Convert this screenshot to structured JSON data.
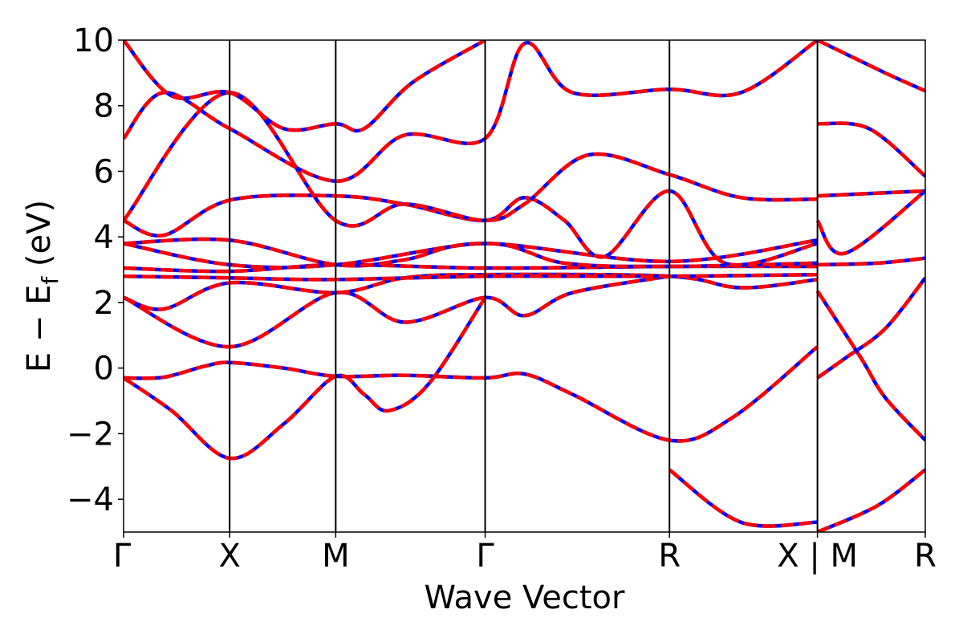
{
  "chart_data": {
    "type": "line",
    "xlabel": "Wave Vector",
    "ylabel": {
      "main": "E − E",
      "sub": "f",
      "unit": " (eV)"
    },
    "ylim": [
      -5,
      10
    ],
    "yticks": [
      -4,
      -2,
      0,
      2,
      4,
      6,
      8,
      10
    ],
    "ytick_labels": [
      "−4",
      "−2",
      "0",
      "2",
      "4",
      "6",
      "8",
      "10"
    ],
    "kpath": {
      "positions": [
        0,
        0.1323,
        0.2646,
        0.451,
        0.6809,
        0.8655,
        1.0
      ],
      "labels": [
        "Γ",
        "X",
        "M",
        "Γ",
        "R",
        "X | M",
        "R"
      ]
    },
    "bands": [
      {
        "points": [
          [
            0,
            -0.3
          ],
          [
            0.05,
            -0.28
          ],
          [
            0.1,
            0.05
          ],
          [
            0.1323,
            0.17
          ],
          [
            0.2,
            0.0
          ],
          [
            0.2646,
            -0.25
          ],
          [
            0.35,
            -0.22
          ],
          [
            0.451,
            -0.3
          ],
          [
            0.5,
            -0.18
          ],
          [
            0.56,
            -0.8
          ],
          [
            0.6809,
            -2.2
          ],
          [
            0.76,
            -1.5
          ],
          [
            0.8655,
            0.65
          ]
        ]
      },
      {
        "points": [
          [
            0,
            -0.3
          ],
          [
            0.06,
            -1.3
          ],
          [
            0.1323,
            -2.75
          ],
          [
            0.2,
            -1.7
          ],
          [
            0.2646,
            -0.25
          ],
          [
            0.3,
            -0.8
          ],
          [
            0.33,
            -1.3
          ],
          [
            0.38,
            -0.5
          ],
          [
            0.451,
            2.15
          ]
        ]
      },
      {
        "points": [
          [
            0,
            2.15
          ],
          [
            0.1323,
            0.65
          ],
          [
            0.2646,
            2.3
          ],
          [
            0.35,
            1.4
          ],
          [
            0.451,
            2.15
          ],
          [
            0.5,
            1.6
          ],
          [
            0.56,
            2.3
          ],
          [
            0.6809,
            2.8
          ]
        ]
      },
      {
        "points": [
          [
            0,
            2.15
          ],
          [
            0.05,
            1.8
          ],
          [
            0.1323,
            2.6
          ],
          [
            0.2646,
            2.3
          ],
          [
            0.35,
            2.75
          ],
          [
            0.451,
            2.85
          ],
          [
            0.6809,
            2.8
          ],
          [
            0.77,
            2.45
          ],
          [
            0.8655,
            2.7
          ]
        ]
      },
      {
        "points": [
          [
            0,
            2.8
          ],
          [
            0.1323,
            2.75
          ],
          [
            0.2646,
            2.7
          ],
          [
            0.451,
            2.8
          ],
          [
            0.6809,
            2.8
          ],
          [
            0.8655,
            2.85
          ]
        ]
      },
      {
        "points": [
          [
            0,
            3.05
          ],
          [
            0.1323,
            2.95
          ],
          [
            0.2646,
            3.15
          ],
          [
            0.451,
            3.05
          ],
          [
            0.6809,
            3.1
          ],
          [
            0.8655,
            3.1
          ]
        ]
      },
      {
        "points": [
          [
            0,
            3.8
          ],
          [
            0.1323,
            3.15
          ],
          [
            0.2646,
            3.15
          ],
          [
            0.451,
            3.8
          ],
          [
            0.55,
            3.2
          ],
          [
            0.6809,
            3.1
          ],
          [
            0.8655,
            3.2
          ]
        ]
      },
      {
        "points": [
          [
            0,
            3.8
          ],
          [
            0.1323,
            3.9
          ],
          [
            0.2646,
            3.15
          ],
          [
            0.35,
            3.3
          ],
          [
            0.451,
            3.8
          ],
          [
            0.6809,
            3.25
          ],
          [
            0.8655,
            3.9
          ]
        ]
      },
      {
        "points": [
          [
            0,
            4.5
          ],
          [
            0.05,
            4.05
          ],
          [
            0.1323,
            5.12
          ],
          [
            0.2646,
            5.25
          ],
          [
            0.35,
            5.0
          ],
          [
            0.451,
            4.5
          ],
          [
            0.5,
            5.2
          ],
          [
            0.55,
            4.5
          ],
          [
            0.6,
            3.4
          ],
          [
            0.6809,
            5.4
          ],
          [
            0.75,
            3.2
          ],
          [
            0.8655,
            3.8
          ]
        ]
      },
      {
        "points": [
          [
            0,
            4.5
          ],
          [
            0.1323,
            8.4
          ],
          [
            0.2646,
            4.5
          ],
          [
            0.35,
            5.0
          ],
          [
            0.451,
            4.5
          ],
          [
            0.5,
            5.0
          ],
          [
            0.58,
            6.5
          ],
          [
            0.6809,
            5.9
          ],
          [
            0.77,
            5.2
          ],
          [
            0.8655,
            5.15
          ]
        ]
      },
      {
        "points": [
          [
            0,
            7.0
          ],
          [
            0.05,
            8.4
          ],
          [
            0.1323,
            7.3
          ],
          [
            0.2646,
            5.7
          ],
          [
            0.35,
            7.1
          ],
          [
            0.451,
            7.0
          ],
          [
            0.5,
            9.9
          ],
          [
            0.56,
            8.4
          ],
          [
            0.6809,
            8.5
          ],
          [
            0.77,
            8.4
          ],
          [
            0.8655,
            10.0
          ]
        ]
      },
      {
        "points": [
          [
            0,
            10.0
          ],
          [
            0.06,
            8.3
          ],
          [
            0.1323,
            8.4
          ],
          [
            0.2,
            7.3
          ],
          [
            0.2646,
            7.45
          ],
          [
            0.3,
            7.3
          ],
          [
            0.36,
            8.7
          ],
          [
            0.451,
            10.0
          ]
        ]
      },
      {
        "points": [
          [
            0.6809,
            -3.1
          ],
          [
            0.77,
            -4.7
          ],
          [
            0.8655,
            -4.7
          ]
        ]
      },
      {
        "points": [
          [
            0.8655,
            -0.3
          ],
          [
            0.9,
            0.3
          ],
          [
            0.95,
            1.2
          ],
          [
            1.0,
            2.75
          ]
        ]
      },
      {
        "points": [
          [
            0.8655,
            2.35
          ],
          [
            0.92,
            0.3
          ],
          [
            0.95,
            -0.9
          ],
          [
            1.0,
            -2.2
          ]
        ]
      },
      {
        "points": [
          [
            0.8655,
            3.15
          ],
          [
            0.94,
            3.2
          ],
          [
            1.0,
            3.35
          ]
        ]
      },
      {
        "points": [
          [
            0.8655,
            4.5
          ],
          [
            0.9,
            3.5
          ],
          [
            1.0,
            5.4
          ]
        ]
      },
      {
        "points": [
          [
            0.8655,
            5.25
          ],
          [
            1.0,
            5.4
          ]
        ]
      },
      {
        "points": [
          [
            0.8655,
            7.45
          ],
          [
            0.93,
            7.3
          ],
          [
            1.0,
            5.85
          ]
        ]
      },
      {
        "points": [
          [
            0.8655,
            10.0
          ],
          [
            0.95,
            9.0
          ],
          [
            1.0,
            8.45
          ]
        ]
      },
      {
        "points": [
          [
            0.8655,
            -5.0
          ],
          [
            0.94,
            -4.2
          ],
          [
            1.0,
            -3.1
          ]
        ]
      }
    ],
    "colors": {
      "dft": "#0000ff",
      "fit": "#ff0000"
    }
  }
}
